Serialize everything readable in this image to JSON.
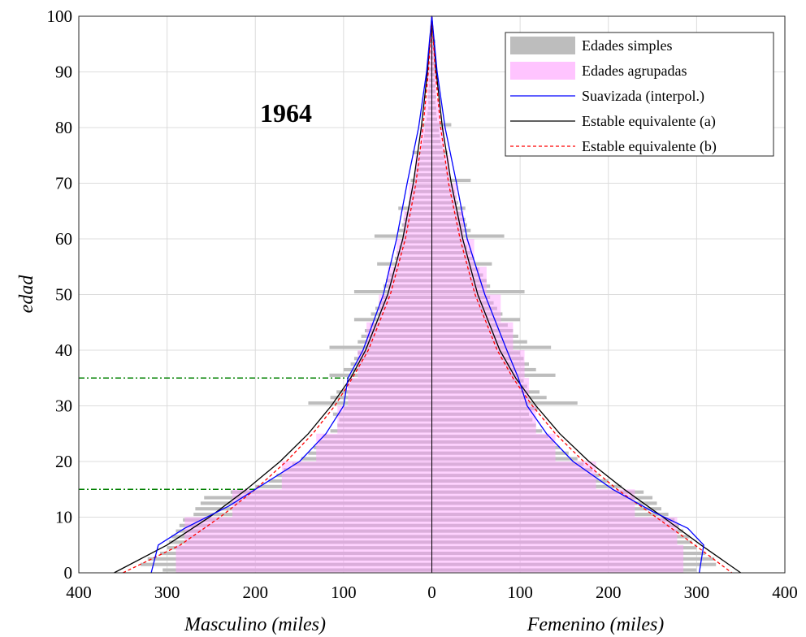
{
  "chart_data": {
    "type": "bar",
    "title": "1964",
    "xlabel_left": "Masculino (miles)",
    "xlabel_right": "Femenino (miles)",
    "ylabel": "edad",
    "xlim": [
      -400,
      400
    ],
    "ylim": [
      0,
      100
    ],
    "xticks": [
      -400,
      -300,
      -200,
      -100,
      0,
      100,
      200,
      300,
      400
    ],
    "xtick_labels": [
      "400",
      "300",
      "200",
      "100",
      "0",
      "100",
      "200",
      "300",
      "400"
    ],
    "yticks": [
      0,
      10,
      20,
      30,
      40,
      50,
      60,
      70,
      80,
      90,
      100
    ],
    "ytick_labels": [
      "0",
      "10",
      "20",
      "30",
      "40",
      "50",
      "60",
      "70",
      "80",
      "90",
      "100"
    ],
    "grid": true,
    "legend_position": "top-right",
    "legend": [
      {
        "label": "Edades simples",
        "color": "#bdbdbd",
        "kind": "patch"
      },
      {
        "label": "Edades agrupadas",
        "color": "#ffc4ff",
        "kind": "patch"
      },
      {
        "label": "Suavizada (interpol.)",
        "color": "#0000ff",
        "kind": "line"
      },
      {
        "label": "Estable equivalente (a)",
        "color": "#000000",
        "kind": "line"
      },
      {
        "label": "Estable equivalente (b)",
        "color": "#ff0000",
        "kind": "dashed"
      }
    ],
    "series": [
      {
        "name": "Edades simples",
        "age": [
          0,
          1,
          2,
          3,
          4,
          5,
          6,
          7,
          8,
          9,
          10,
          11,
          12,
          13,
          14,
          15,
          16,
          17,
          18,
          19,
          20,
          21,
          22,
          23,
          24,
          25,
          26,
          27,
          28,
          29,
          30,
          31,
          32,
          33,
          34,
          35,
          36,
          37,
          38,
          39,
          40,
          41,
          42,
          43,
          44,
          45,
          46,
          47,
          48,
          49,
          50,
          51,
          52,
          53,
          54,
          55,
          56,
          57,
          58,
          59,
          60,
          61,
          62,
          63,
          64,
          65,
          66,
          67,
          68,
          69,
          70,
          71,
          72,
          73,
          74,
          75,
          76,
          77,
          78,
          79,
          80,
          81,
          82,
          83,
          84,
          85,
          86,
          87,
          88,
          89,
          90,
          91,
          92,
          93,
          94,
          95,
          96,
          97,
          98,
          99
        ],
        "male": [
          -305,
          -330,
          -322,
          -308,
          -300,
          -298,
          -295,
          -290,
          -286,
          -282,
          -270,
          -268,
          -262,
          -258,
          -228,
          -200,
          -185,
          -176,
          -168,
          -158,
          -148,
          -140,
          -134,
          -128,
          -123,
          -115,
          -107,
          -105,
          -112,
          -100,
          -140,
          -115,
          -108,
          -95,
          -92,
          -116,
          -100,
          -92,
          -88,
          -84,
          -116,
          -84,
          -80,
          -76,
          -70,
          -88,
          -69,
          -64,
          -60,
          -56,
          -88,
          -55,
          -52,
          -48,
          -44,
          -62,
          -42,
          -40,
          -37,
          -34,
          -65,
          -38,
          -34,
          -32,
          -30,
          -38,
          -26,
          -24,
          -22,
          -20,
          -24,
          -20,
          -18,
          -16,
          -14,
          -22,
          -12,
          -10,
          -9,
          -8,
          -12,
          -6,
          -5,
          -4,
          -4,
          -5,
          -4,
          -3,
          -3,
          -2,
          -3,
          -2,
          -2,
          -2,
          -1,
          -2,
          -1,
          -1,
          -1,
          -1
        ],
        "female": [
          300,
          322,
          320,
          310,
          300,
          295,
          292,
          285,
          280,
          275,
          268,
          260,
          255,
          250,
          240,
          215,
          200,
          190,
          182,
          172,
          165,
          155,
          145,
          138,
          132,
          125,
          118,
          114,
          110,
          120,
          165,
          130,
          122,
          108,
          104,
          140,
          118,
          110,
          104,
          100,
          135,
          108,
          98,
          92,
          86,
          100,
          80,
          74,
          70,
          66,
          105,
          66,
          62,
          58,
          54,
          68,
          48,
          44,
          40,
          36,
          82,
          44,
          40,
          38,
          34,
          38,
          30,
          28,
          26,
          24,
          44,
          20,
          18,
          16,
          14,
          18,
          12,
          10,
          9,
          8,
          22,
          6,
          5,
          5,
          4,
          5,
          4,
          4,
          3,
          3,
          4,
          3,
          2,
          2,
          2,
          4,
          1,
          1,
          1,
          1
        ]
      },
      {
        "name": "Edades agrupadas",
        "age_groups": [
          "0-4",
          "5-9",
          "10-14",
          "15-19",
          "20-24",
          "25-29",
          "30-34",
          "35-39",
          "40-44",
          "45-49",
          "50-54",
          "55-59",
          "60-64",
          "65-69",
          "70-74",
          "75-79",
          "80-84",
          "85-89",
          "90-94",
          "95-99"
        ],
        "male": [
          -290,
          -280,
          -226,
          -170,
          -131,
          -107,
          -95,
          -84,
          -74,
          -60,
          -50,
          -40,
          -32,
          -26,
          -19,
          -13,
          -8,
          -5,
          -3,
          -1
        ],
        "female": [
          285,
          278,
          230,
          186,
          140,
          118,
          110,
          105,
          92,
          78,
          62,
          48,
          36,
          28,
          20,
          14,
          9,
          5,
          3,
          1
        ]
      },
      {
        "name": "Suavizada (interpol.)",
        "points": [
          [
            -318,
            0
          ],
          [
            -310,
            5
          ],
          [
            -280,
            8
          ],
          [
            -230,
            12
          ],
          [
            -190,
            16
          ],
          [
            -150,
            20
          ],
          [
            -120,
            25
          ],
          [
            -100,
            30
          ],
          [
            -95,
            35
          ],
          [
            -78,
            40
          ],
          [
            -55,
            50
          ],
          [
            -40,
            60
          ],
          [
            -28,
            70
          ],
          [
            -15,
            80
          ],
          [
            -6,
            90
          ],
          [
            0,
            100
          ],
          [
            6,
            90
          ],
          [
            15,
            80
          ],
          [
            28,
            70
          ],
          [
            40,
            60
          ],
          [
            60,
            50
          ],
          [
            85,
            40
          ],
          [
            98,
            35
          ],
          [
            108,
            30
          ],
          [
            130,
            25
          ],
          [
            160,
            20
          ],
          [
            205,
            15
          ],
          [
            250,
            11
          ],
          [
            290,
            8
          ],
          [
            308,
            5
          ],
          [
            303,
            0
          ]
        ]
      },
      {
        "name": "Estable equivalente (a)",
        "points": [
          [
            -360,
            0
          ],
          [
            -300,
            5
          ],
          [
            -252,
            10
          ],
          [
            -210,
            15
          ],
          [
            -172,
            20
          ],
          [
            -140,
            25
          ],
          [
            -114,
            30
          ],
          [
            -92,
            35
          ],
          [
            -75,
            40
          ],
          [
            -50,
            50
          ],
          [
            -33,
            60
          ],
          [
            -21,
            70
          ],
          [
            -12,
            80
          ],
          [
            -5,
            90
          ],
          [
            0,
            100
          ],
          [
            5,
            90
          ],
          [
            12,
            80
          ],
          [
            22,
            70
          ],
          [
            35,
            60
          ],
          [
            52,
            50
          ],
          [
            77,
            40
          ],
          [
            95,
            35
          ],
          [
            118,
            30
          ],
          [
            145,
            25
          ],
          [
            178,
            20
          ],
          [
            218,
            15
          ],
          [
            262,
            10
          ],
          [
            305,
            5
          ],
          [
            350,
            0
          ]
        ]
      },
      {
        "name": "Estable equivalente (b)",
        "points": [
          [
            -350,
            0
          ],
          [
            -285,
            5
          ],
          [
            -240,
            10
          ],
          [
            -200,
            15
          ],
          [
            -165,
            20
          ],
          [
            -135,
            25
          ],
          [
            -110,
            30
          ],
          [
            -90,
            35
          ],
          [
            -72,
            40
          ],
          [
            -47,
            50
          ],
          [
            -30,
            60
          ],
          [
            -18,
            70
          ],
          [
            -10,
            80
          ],
          [
            -4,
            90
          ],
          [
            0,
            100
          ],
          [
            4,
            90
          ],
          [
            10,
            80
          ],
          [
            19,
            70
          ],
          [
            32,
            60
          ],
          [
            49,
            50
          ],
          [
            74,
            40
          ],
          [
            92,
            35
          ],
          [
            114,
            30
          ],
          [
            140,
            25
          ],
          [
            172,
            20
          ],
          [
            210,
            15
          ],
          [
            254,
            10
          ],
          [
            298,
            5
          ],
          [
            340,
            0
          ]
        ]
      }
    ],
    "reference_lines": [
      {
        "age": 35,
        "x_end": -95,
        "color": "#008000"
      },
      {
        "age": 15,
        "x_end": -200,
        "color": "#008000"
      }
    ]
  }
}
